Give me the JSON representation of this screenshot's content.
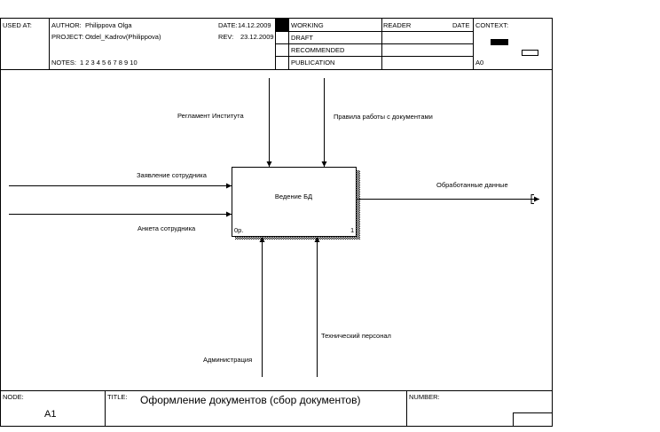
{
  "header": {
    "used_at_label": "USED AT:",
    "author_label": "AUTHOR:",
    "author": "Philippova Olga",
    "project_label": "PROJECT:",
    "project": "Otdel_Kadrov(Philippova)",
    "date_label": "DATE:",
    "date": "14.12.2009",
    "rev_label": "REV:",
    "rev": "23.12.2009",
    "notes_label": "NOTES:",
    "notes": "1  2  3  4  5  6  7  8  9  10",
    "statuses": [
      "WORKING",
      "DRAFT",
      "RECOMMENDED",
      "PUBLICATION"
    ],
    "reader_label": "READER",
    "reader_date_label": "DATE",
    "context_label": "CONTEXT:",
    "context_node": "A0"
  },
  "diagram": {
    "activity": {
      "name": "Ведение БД",
      "cost": "0р.",
      "number": "1"
    },
    "controls": [
      "Регламент Института",
      "Правила работы с документами"
    ],
    "inputs": [
      "Заявление сотрудника",
      "Анкета сотрудника"
    ],
    "outputs": [
      "Обработанные данные"
    ],
    "mechanisms": [
      "Администрация",
      "Технический персонал"
    ]
  },
  "footer": {
    "node_label": "NODE:",
    "node": "A1",
    "title_label": "TITLE:",
    "title": "Оформление документов  (сбор документов)",
    "number_label": "NUMBER:"
  }
}
